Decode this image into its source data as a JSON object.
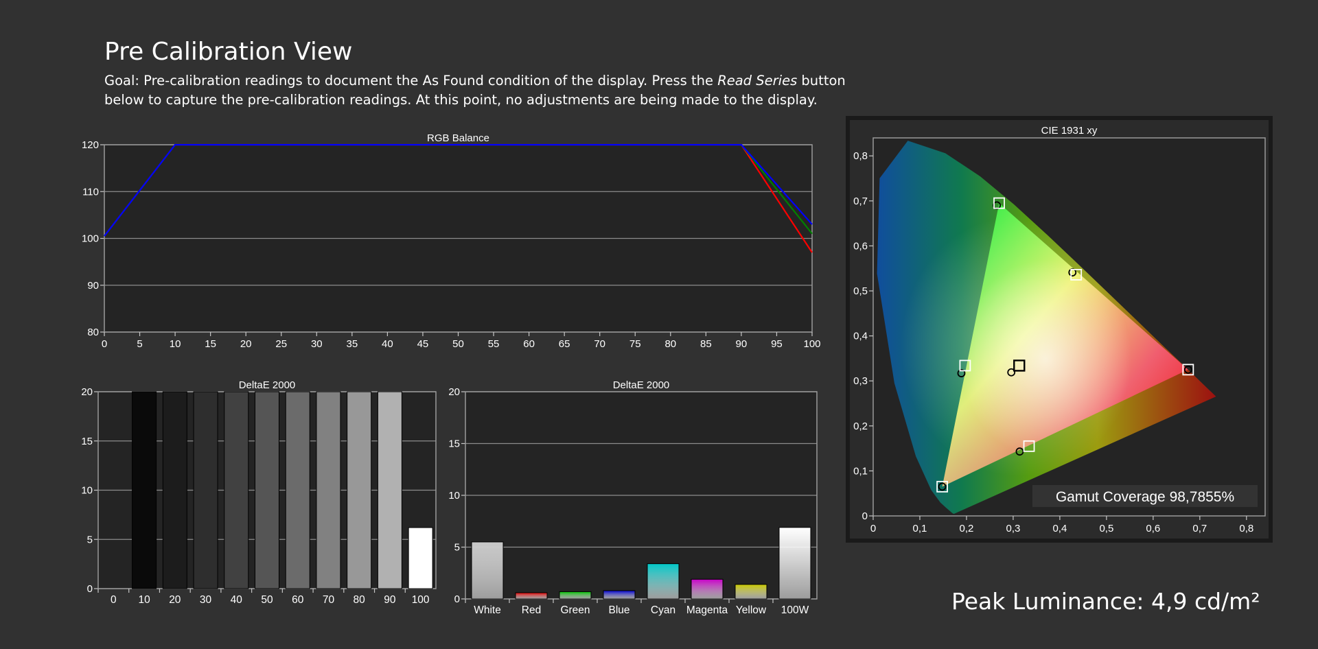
{
  "header": {
    "title": "Pre Calibration View",
    "goal_text_1": "Goal: Pre-calibration readings to document the As Found condition of the display. Press the ",
    "goal_italic": "Read Series",
    "goal_text_2": " button below to capture the pre-calibration readings. At this point, no adjustments are being made to the display."
  },
  "footer": {
    "peak_luminance": "Peak Luminance: 4,9 cd/m²"
  },
  "colors": {
    "background": "#313131",
    "plot_bg": "#242424",
    "grid": "#8c8c8c",
    "red": "#ff0000",
    "green": "#008000",
    "blue": "#0000ff",
    "cie_frame": "#1a1a1a"
  },
  "chart_data": [
    {
      "id": "rgb",
      "type": "line",
      "title": "RGB Balance",
      "xlabel": "",
      "ylabel": "",
      "xlim": [
        0,
        100
      ],
      "ylim": [
        80,
        120
      ],
      "xticks": [
        0,
        5,
        10,
        15,
        20,
        25,
        30,
        35,
        40,
        45,
        50,
        55,
        60,
        65,
        70,
        75,
        80,
        85,
        90,
        95,
        100
      ],
      "yticks": [
        80,
        90,
        100,
        110,
        120
      ],
      "grid": true,
      "series": [
        {
          "color": "#ff0000",
          "points": [
            [
              0,
              100.5
            ],
            [
              10,
              120
            ],
            [
              90,
              120
            ],
            [
              100,
              97
            ]
          ]
        },
        {
          "color": "#008000",
          "points": [
            [
              0,
              100.5
            ],
            [
              10,
              120
            ],
            [
              90,
              120
            ],
            [
              100,
              101
            ]
          ]
        },
        {
          "color": "#0000ff",
          "points": [
            [
              0,
              100.5
            ],
            [
              10,
              120
            ],
            [
              90,
              120
            ],
            [
              100,
              103
            ]
          ]
        }
      ]
    },
    {
      "id": "gray",
      "type": "bar",
      "title": "DeltaE 2000",
      "ylim": [
        0,
        20
      ],
      "yticks": [
        0,
        5,
        10,
        15,
        20
      ],
      "grid": true,
      "categories": [
        "0",
        "10",
        "20",
        "30",
        "40",
        "50",
        "60",
        "70",
        "80",
        "90",
        "100"
      ],
      "values": [
        0,
        20,
        20,
        20,
        20,
        20,
        20,
        20,
        20,
        20,
        6.2
      ],
      "colors": [
        "#000000",
        "#0a0a0a",
        "#1c1c1c",
        "#2e2e2e",
        "#414141",
        "#555555",
        "#6b6b6b",
        "#818181",
        "#989898",
        "#b1b1b1",
        "#ffffff"
      ]
    },
    {
      "id": "color",
      "type": "bar",
      "title": "DeltaE 2000",
      "ylim": [
        0,
        20
      ],
      "yticks": [
        0,
        5,
        10,
        15,
        20
      ],
      "grid": true,
      "categories": [
        "White",
        "Red",
        "Green",
        "Blue",
        "Cyan",
        "Magenta",
        "Yellow",
        "100W"
      ],
      "values": [
        5.5,
        0.6,
        0.7,
        0.8,
        3.4,
        1.9,
        1.4,
        6.9
      ],
      "colors": [
        "#c8c8c8",
        "#e00000",
        "#00c000",
        "#0000d0",
        "#00c8c8",
        "#c800c8",
        "#c8c800",
        "#ffffff"
      ]
    },
    {
      "id": "cie",
      "type": "scatter",
      "title": "CIE 1931 xy",
      "xlim": [
        0,
        0.84
      ],
      "ylim": [
        0,
        0.84
      ],
      "xticks": [
        "0",
        "0,1",
        "0,2",
        "0,3",
        "0,4",
        "0,5",
        "0,6",
        "0,7",
        "0,8"
      ],
      "yticks": [
        "0",
        "0,1",
        "0,2",
        "0,3",
        "0,4",
        "0,5",
        "0,6",
        "0,7",
        "0,8"
      ],
      "targets": [
        {
          "name": "Red",
          "x": 0.675,
          "y": 0.325
        },
        {
          "name": "Green",
          "x": 0.27,
          "y": 0.695
        },
        {
          "name": "Blue",
          "x": 0.148,
          "y": 0.065
        },
        {
          "name": "White",
          "x": 0.313,
          "y": 0.334
        },
        {
          "name": "Cyan",
          "x": 0.197,
          "y": 0.334
        },
        {
          "name": "Magenta",
          "x": 0.334,
          "y": 0.155
        },
        {
          "name": "Yellow",
          "x": 0.435,
          "y": 0.536
        }
      ],
      "measured": [
        {
          "name": "Red",
          "x": 0.675,
          "y": 0.325
        },
        {
          "name": "Green",
          "x": 0.265,
          "y": 0.69
        },
        {
          "name": "Blue",
          "x": 0.148,
          "y": 0.065
        },
        {
          "name": "White",
          "x": 0.296,
          "y": 0.319
        },
        {
          "name": "Cyan",
          "x": 0.189,
          "y": 0.317
        },
        {
          "name": "Magenta",
          "x": 0.314,
          "y": 0.143
        },
        {
          "name": "Yellow",
          "x": 0.427,
          "y": 0.541
        }
      ],
      "gamut_coverage": "Gamut Coverage 98,7855%"
    }
  ]
}
